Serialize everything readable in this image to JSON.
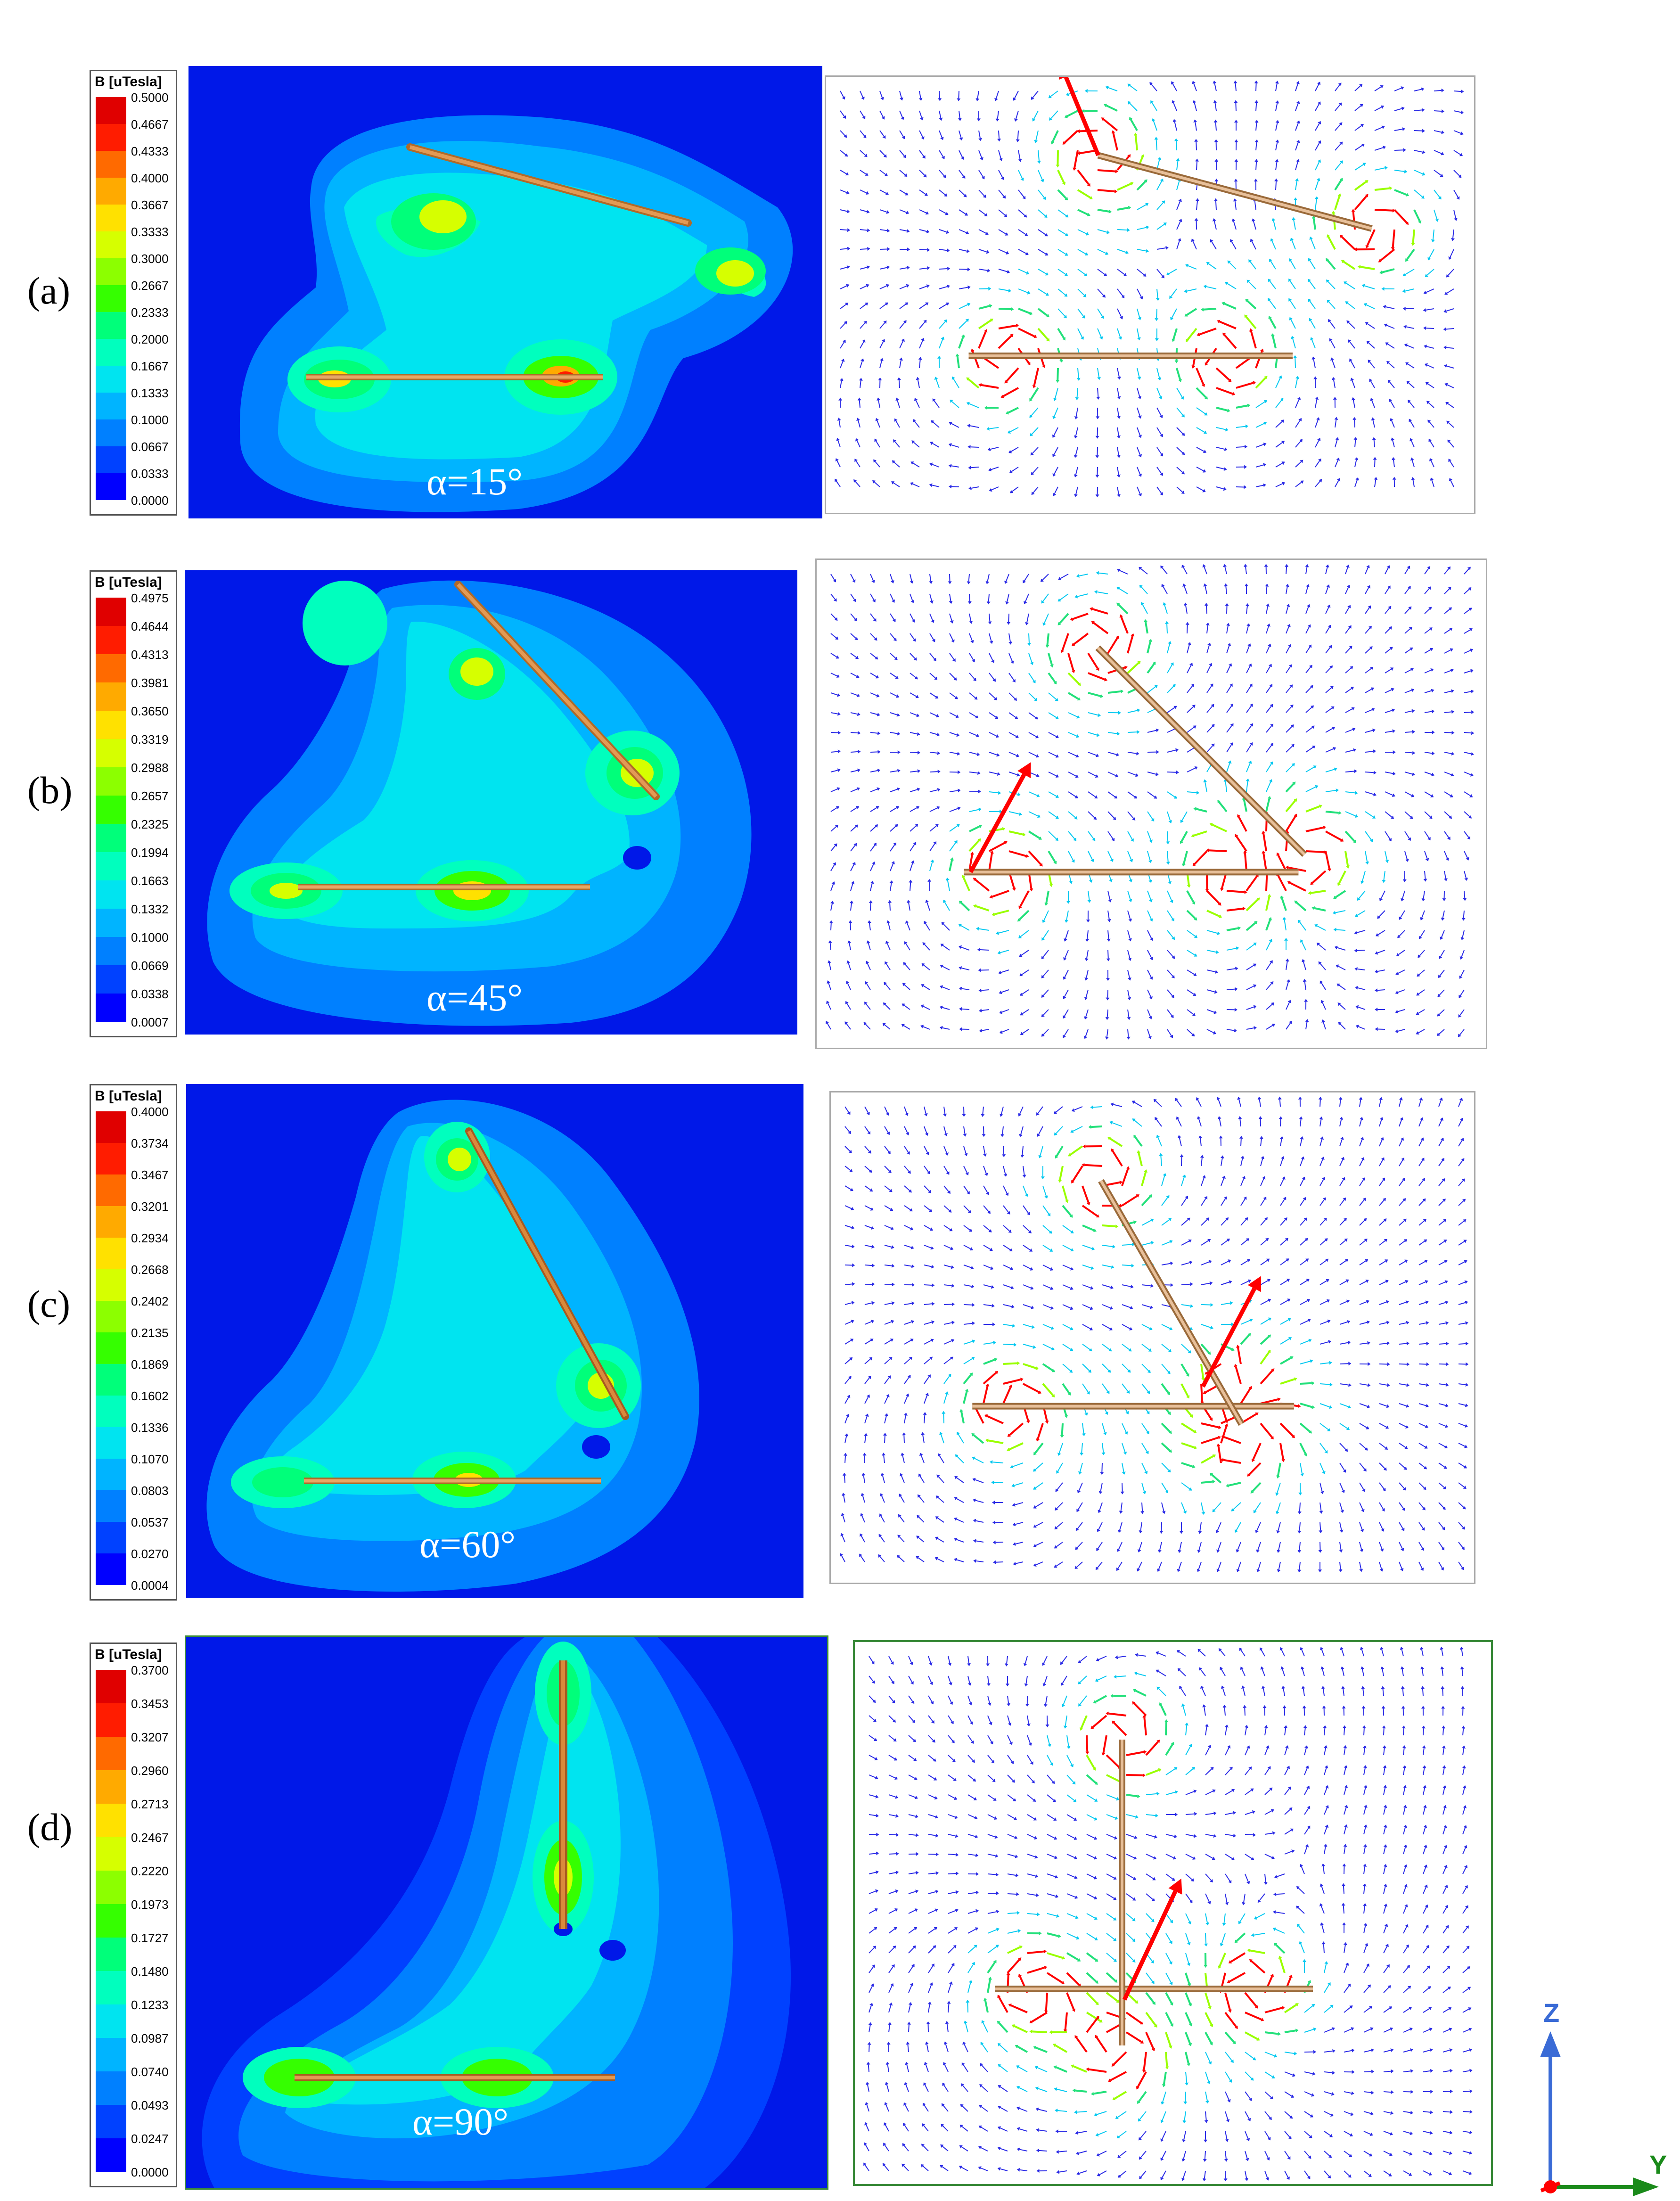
{
  "colors": {
    "scale": [
      "#0000ff",
      "#0041ff",
      "#0080ff",
      "#00b4ff",
      "#00e4f0",
      "#00ffbe",
      "#00ff7a",
      "#35ff00",
      "#8cff00",
      "#d6ff00",
      "#ffe100",
      "#ffaa00",
      "#ff6a00",
      "#ff1c00",
      "#e00000"
    ],
    "field_background": "#0018e8",
    "conductor": "#d98a3c",
    "arrow_strong": "#ff0000",
    "arrow_mid": "#e6e600",
    "arrow_weak": "#2a2ae6",
    "axis_z": "#3a6bd6",
    "axis_y": "#1a8a1a",
    "axis_x": "#ff0000"
  },
  "axes": {
    "z_label": "Z",
    "y_label": "Y"
  },
  "panels": [
    {
      "label": "(a)",
      "alpha_text": "α=15°",
      "alpha_deg": 15,
      "legend_title": "B [uTesla]",
      "legend_values": [
        "0.5000",
        "0.4667",
        "0.4333",
        "0.4000",
        "0.3667",
        "0.3333",
        "0.3000",
        "0.2667",
        "0.2333",
        "0.2000",
        "0.1667",
        "0.1333",
        "0.1000",
        "0.0667",
        "0.0333",
        "0.0000"
      ]
    },
    {
      "label": "(b)",
      "alpha_text": "α=45°",
      "alpha_deg": 45,
      "legend_title": "B [uTesla]",
      "legend_values": [
        "0.4975",
        "0.4644",
        "0.4313",
        "0.3981",
        "0.3650",
        "0.3319",
        "0.2988",
        "0.2657",
        "0.2325",
        "0.1994",
        "0.1663",
        "0.1332",
        "0.1000",
        "0.0669",
        "0.0338",
        "0.0007"
      ]
    },
    {
      "label": "(c)",
      "alpha_text": "α=60°",
      "alpha_deg": 60,
      "legend_title": "B [uTesla]",
      "legend_values": [
        "0.4000",
        "0.3734",
        "0.3467",
        "0.3201",
        "0.2934",
        "0.2668",
        "0.2402",
        "0.2135",
        "0.1869",
        "0.1602",
        "0.1336",
        "0.1070",
        "0.0803",
        "0.0537",
        "0.0270",
        "0.0004"
      ]
    },
    {
      "label": "(d)",
      "alpha_text": "α=90°",
      "alpha_deg": 90,
      "legend_title": "B [uTesla]",
      "legend_values": [
        "0.3700",
        "0.3453",
        "0.3207",
        "0.2960",
        "0.2713",
        "0.2467",
        "0.2220",
        "0.1973",
        "0.1727",
        "0.1480",
        "0.1233",
        "0.0987",
        "0.0740",
        "0.0493",
        "0.0247",
        "0.0000"
      ]
    }
  ]
}
